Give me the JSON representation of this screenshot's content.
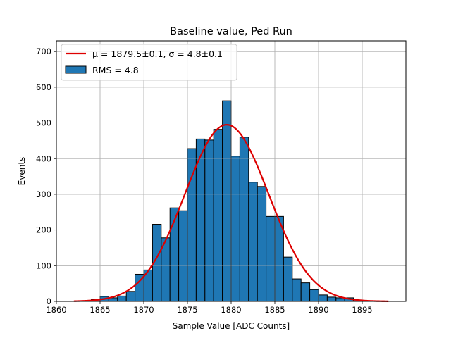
{
  "chart_data": {
    "type": "bar",
    "title": "Baseline value, Ped Run",
    "xlabel": "Sample Value [ADC Counts]",
    "ylabel": "Events",
    "xlim": [
      1860,
      1900
    ],
    "ylim": [
      0,
      730
    ],
    "xticks": [
      1860,
      1865,
      1870,
      1875,
      1880,
      1885,
      1890,
      1895
    ],
    "yticks": [
      0,
      100,
      200,
      300,
      400,
      500,
      600,
      700
    ],
    "grid": true,
    "legend_position": "upper-left",
    "colors": {
      "bars": "#1f77b4",
      "bar_edge": "#000000",
      "fit": "#dd0000",
      "grid": "#b0b0b0"
    },
    "series": [
      {
        "name": "RMS = 4.8",
        "kind": "histogram",
        "bin_width": 1,
        "bin_starts": [
          1864,
          1865,
          1866,
          1867,
          1868,
          1869,
          1870,
          1871,
          1872,
          1873,
          1874,
          1875,
          1876,
          1877,
          1878,
          1879,
          1880,
          1881,
          1882,
          1883,
          1884,
          1885,
          1886,
          1887,
          1888,
          1889,
          1890,
          1891,
          1892,
          1893,
          1894,
          1895,
          1896
        ],
        "counts": [
          5,
          14,
          10,
          15,
          28,
          76,
          88,
          216,
          178,
          262,
          254,
          428,
          455,
          452,
          482,
          562,
          407,
          460,
          334,
          322,
          238,
          238,
          124,
          63,
          52,
          33,
          18,
          12,
          10,
          10,
          4,
          1,
          1
        ]
      },
      {
        "name": "μ = 1879.5±0.1, σ = 4.8±0.1",
        "kind": "gaussian-fit",
        "mu": 1879.5,
        "sigma": 4.8,
        "amplitude": 495,
        "x_range": [
          1862,
          1898
        ]
      }
    ]
  }
}
